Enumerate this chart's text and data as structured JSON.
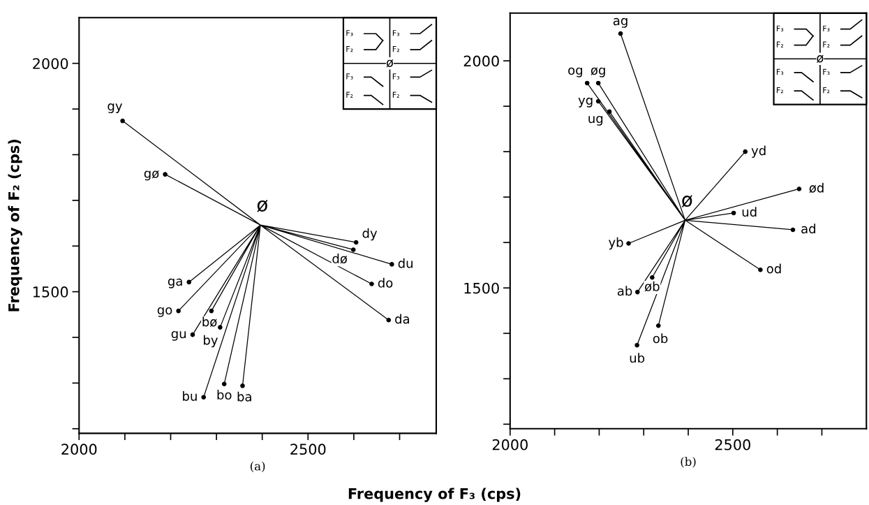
{
  "chart_data": [
    {
      "type": "scatter",
      "xlabel": "(a)",
      "ylabel": "Frequency of F₂ (cps)",
      "xlim": [
        2000,
        2780
      ],
      "ylim": [
        1190,
        2100
      ],
      "xticks": [
        2000,
        {
          "value": 2100,
          "label": null
        },
        {
          "value": 2200,
          "label": null
        },
        {
          "value": 2300,
          "label": null
        },
        {
          "value": 2400,
          "label": null
        },
        2500,
        {
          "value": 2600,
          "label": null
        },
        {
          "value": 2700,
          "label": null
        }
      ],
      "yticks": [
        {
          "value": 1200,
          "label": null
        },
        {
          "value": 1300,
          "label": null
        },
        {
          "value": 1400,
          "label": null
        },
        1500,
        {
          "value": 1600,
          "label": null
        },
        {
          "value": 1700,
          "label": null
        },
        {
          "value": 1800,
          "label": null
        },
        {
          "value": 1900,
          "label": null
        },
        2000
      ],
      "marker": "circle",
      "grid": false,
      "legend": false,
      "series": [
        {
          "color": "#000000",
          "x": [
            2095,
            2188,
            2605,
            2599,
            2683,
            2639,
            2676,
            2240,
            2217,
            2248,
            2289,
            2308,
            2272,
            2317,
            2357
          ],
          "values": [
            1874,
            1757,
            1608,
            1592,
            1560,
            1517,
            1438,
            1521,
            1458,
            1406,
            1458,
            1422,
            1269,
            1298,
            1294
          ]
        },
        {
          "type": "line",
          "marker": "none",
          "color": "#000000",
          "x": [
            2396,
            2095,
            2396,
            2188,
            2396,
            2605,
            2396,
            2599,
            2396,
            2683,
            2396,
            2639,
            2396,
            2676,
            2396,
            2240,
            2396,
            2217,
            2396,
            2248,
            2396,
            2289,
            2396,
            2308,
            2396,
            2272,
            2396,
            2317,
            2396,
            2357
          ],
          "values": [
            1646,
            1874,
            1646,
            1757,
            1646,
            1608,
            1646,
            1592,
            1646,
            1560,
            1646,
            1517,
            1646,
            1438,
            1646,
            1521,
            1646,
            1458,
            1646,
            1406,
            1646,
            1458,
            1646,
            1422,
            1646,
            1269,
            1646,
            1298,
            1646,
            1294
          ]
        }
      ],
      "annotations": [
        {
          "text": "gy",
          "x": 2095,
          "y": 1874
        },
        {
          "text": "gø",
          "x": 2188,
          "y": 1757
        },
        {
          "text": "dy",
          "x": 2605,
          "y": 1608
        },
        {
          "text": "dø",
          "x": 2599,
          "y": 1592
        },
        {
          "text": "du",
          "x": 2683,
          "y": 1560
        },
        {
          "text": "do",
          "x": 2639,
          "y": 1517
        },
        {
          "text": "da",
          "x": 2676,
          "y": 1438
        },
        {
          "text": "ga",
          "x": 2240,
          "y": 1521
        },
        {
          "text": "go",
          "x": 2217,
          "y": 1458
        },
        {
          "text": "gu",
          "x": 2248,
          "y": 1406
        },
        {
          "text": "bø",
          "x": 2289,
          "y": 1458
        },
        {
          "text": "by",
          "x": 2308,
          "y": 1422
        },
        {
          "text": "bu",
          "x": 2272,
          "y": 1269
        },
        {
          "text": "bo",
          "x": 2317,
          "y": 1298
        },
        {
          "text": "ba",
          "x": 2357,
          "y": 1294
        },
        {
          "text": "ø",
          "x": 2396,
          "y": 1646
        },
        "F₃",
        "F₂",
        "F₃",
        "F₂",
        "F₃",
        "F₂",
        "F₃",
        "F₂",
        "ø",
        "Frequency of F₃ (cps)"
      ]
    },
    {
      "type": "scatter",
      "xlabel": "(b)",
      "xlim": [
        2000,
        2800
      ],
      "ylim": [
        1190,
        2105
      ],
      "xticks": [
        2000,
        {
          "value": 2100,
          "label": null
        },
        {
          "value": 2200,
          "label": null
        },
        {
          "value": 2300,
          "label": null
        },
        {
          "value": 2400,
          "label": null
        },
        2500,
        {
          "value": 2600,
          "label": null
        },
        {
          "value": 2700,
          "label": null
        }
      ],
      "yticks": [
        {
          "value": 1200,
          "label": null
        },
        {
          "value": 1300,
          "label": null
        },
        {
          "value": 1400,
          "label": null
        },
        1500,
        {
          "value": 1600,
          "label": null
        },
        {
          "value": 1700,
          "label": null
        },
        {
          "value": 1800,
          "label": null
        },
        {
          "value": 1900,
          "label": null
        },
        2000
      ],
      "marker": "circle",
      "grid": false,
      "legend": false,
      "series": [
        {
          "color": "#000000",
          "x": [
            2248,
            2173,
            2198,
            2198,
            2223,
            2528,
            2649,
            2502,
            2635,
            2266,
            2562,
            2319,
            2286,
            2333,
            2285
          ],
          "values": [
            2060,
            1951,
            1951,
            1911,
            1888,
            1800,
            1718,
            1665,
            1628,
            1598,
            1540,
            1523,
            1491,
            1417,
            1374
          ]
        },
        {
          "type": "line",
          "marker": "none",
          "color": "#000000",
          "x": [
            2393,
            2248,
            2393,
            2173,
            2393,
            2198,
            2393,
            2198,
            2393,
            2223,
            2393,
            2528,
            2393,
            2649,
            2393,
            2502,
            2393,
            2635,
            2393,
            2266,
            2393,
            2562,
            2393,
            2319,
            2393,
            2286,
            2393,
            2333,
            2393,
            2285
          ],
          "values": [
            1649,
            2060,
            1649,
            1951,
            1649,
            1951,
            1649,
            1911,
            1649,
            1888,
            1649,
            1800,
            1649,
            1718,
            1649,
            1665,
            1649,
            1628,
            1649,
            1598,
            1649,
            1540,
            1649,
            1523,
            1649,
            1491,
            1649,
            1417,
            1649,
            1374
          ]
        }
      ],
      "annotations": [
        {
          "text": "ag",
          "x": 2248,
          "y": 2060
        },
        {
          "text": "og",
          "x": 2173,
          "y": 1951
        },
        {
          "text": "øg",
          "x": 2198,
          "y": 1951
        },
        {
          "text": "yg",
          "x": 2198,
          "y": 1911
        },
        {
          "text": "ug",
          "x": 2223,
          "y": 1888
        },
        {
          "text": "yd",
          "x": 2528,
          "y": 1800
        },
        {
          "text": "ød",
          "x": 2649,
          "y": 1718
        },
        {
          "text": "ud",
          "x": 2502,
          "y": 1665
        },
        {
          "text": "ad",
          "x": 2635,
          "y": 1628
        },
        {
          "text": "yb",
          "x": 2266,
          "y": 1598
        },
        {
          "text": "od",
          "x": 2562,
          "y": 1540
        },
        {
          "text": "øb",
          "x": 2319,
          "y": 1523
        },
        {
          "text": "ab",
          "x": 2286,
          "y": 1491
        },
        {
          "text": "ob",
          "x": 2333,
          "y": 1417
        },
        {
          "text": "ub",
          "x": 2285,
          "y": 1374
        },
        {
          "text": "ø",
          "x": 2393,
          "y": 1649
        },
        "F₃",
        "F₂",
        "F₃",
        "F₂",
        "F₃",
        "F₂",
        "F₃",
        "F₂",
        "ø"
      ]
    }
  ]
}
